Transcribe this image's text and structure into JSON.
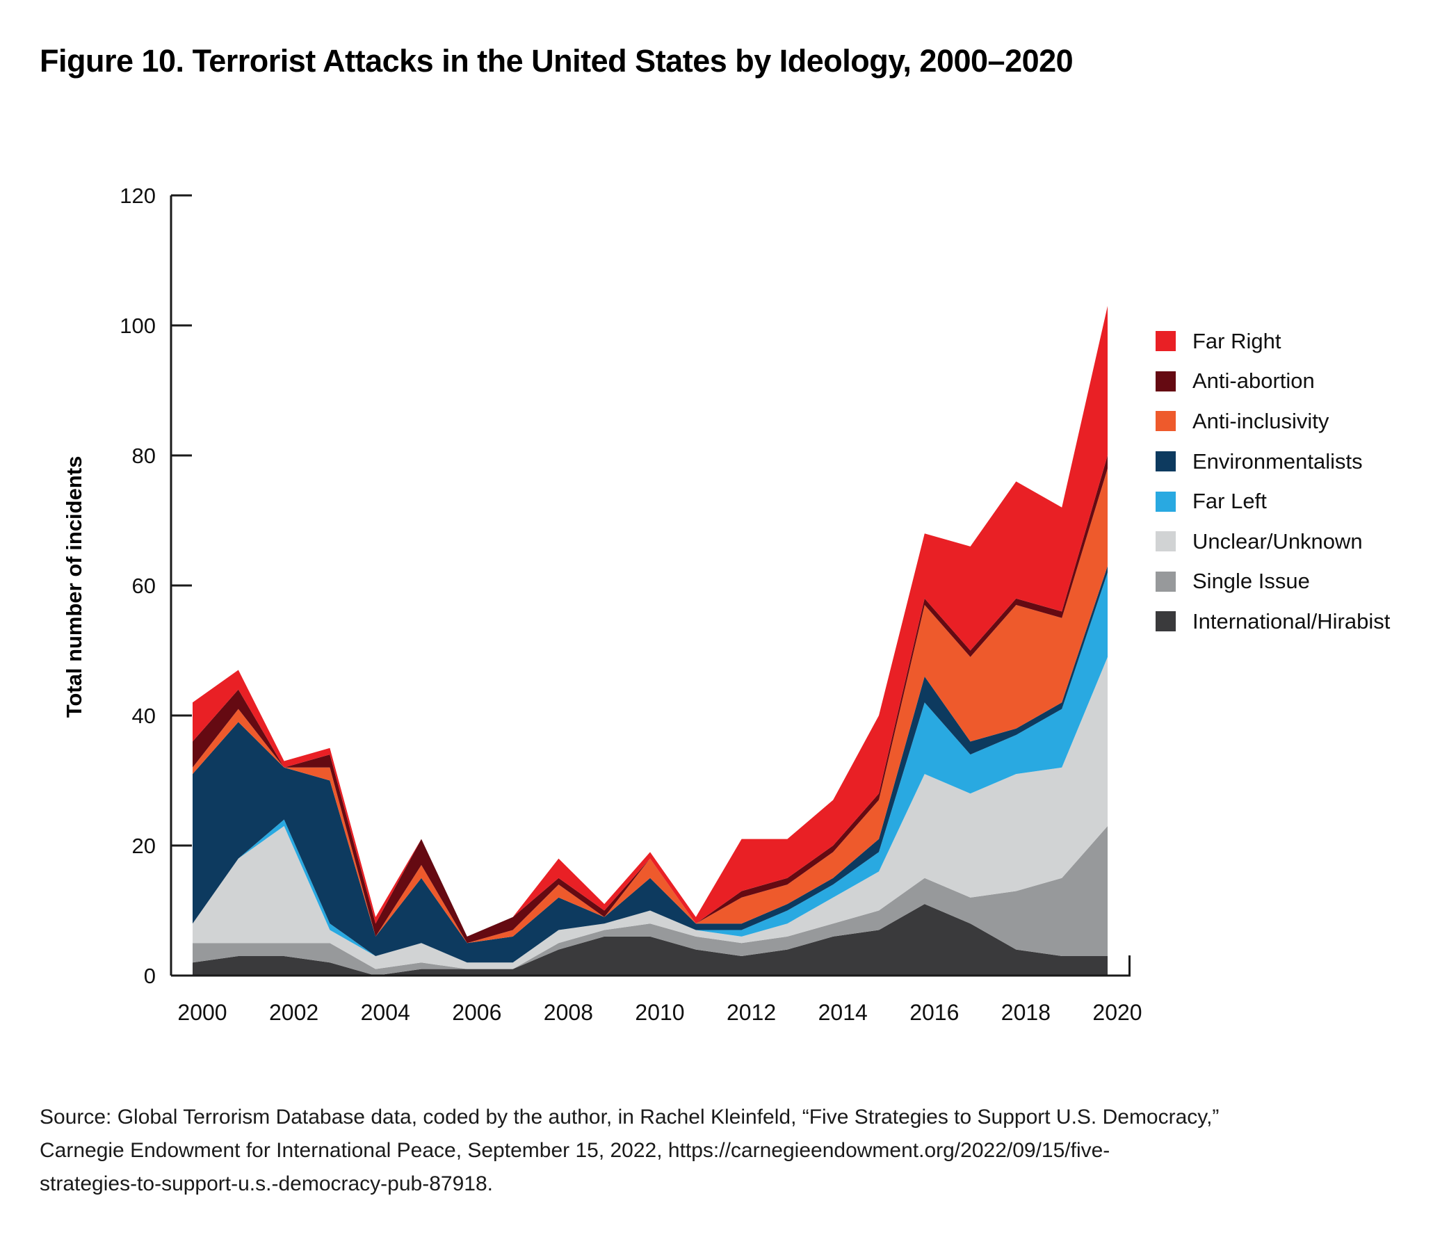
{
  "title": "Figure 10. Terrorist Attacks in the United States by Ideology, 2000–2020",
  "source": {
    "lines": [
      "Source: Global Terrorism Database data, coded by the author, in Rachel Kleinfeld, “Five Strategies to Support U.S. Democracy,”",
      "Carnegie Endowment for International Peace, September 15, 2022, https://carnegieendowment.org/2022/09/15/five-",
      "strategies-to-support-u.s.-democracy-pub-87918."
    ]
  },
  "chart_data": {
    "type": "area",
    "stacked": true,
    "title": "Figure 10. Terrorist Attacks in the United States by Ideology, 2000–2020",
    "xlabel": "",
    "ylabel": "Total number of incidents",
    "x": [
      2000,
      2001,
      2002,
      2003,
      2004,
      2005,
      2006,
      2007,
      2008,
      2009,
      2010,
      2011,
      2012,
      2013,
      2014,
      2015,
      2016,
      2017,
      2018,
      2019,
      2020
    ],
    "xticks": [
      2000,
      2002,
      2004,
      2006,
      2008,
      2010,
      2012,
      2014,
      2016,
      2018,
      2020
    ],
    "yticks": [
      0,
      20,
      40,
      60,
      80,
      100,
      120
    ],
    "ylim": [
      0,
      120
    ],
    "grid": false,
    "legend_position": "right",
    "series_bottom_to_top": [
      {
        "name": "International/Hirabist",
        "color": "#3A3A3C",
        "values": [
          2,
          3,
          3,
          2,
          0,
          1,
          1,
          1,
          4,
          6,
          6,
          4,
          3,
          4,
          6,
          7,
          11,
          8,
          4,
          3,
          3
        ]
      },
      {
        "name": "Single Issue",
        "color": "#97999B",
        "values": [
          3,
          2,
          2,
          3,
          1,
          1,
          0,
          0,
          1,
          1,
          2,
          2,
          2,
          2,
          2,
          3,
          4,
          4,
          9,
          12,
          20
        ]
      },
      {
        "name": "Unclear/Unknown",
        "color": "#D1D3D4",
        "values": [
          3,
          13,
          18,
          2,
          2,
          3,
          1,
          1,
          2,
          1,
          2,
          1,
          1,
          2,
          4,
          6,
          16,
          16,
          18,
          17,
          26
        ]
      },
      {
        "name": "Far Left",
        "color": "#29A9E1",
        "values": [
          0,
          0,
          1,
          1,
          0,
          0,
          0,
          0,
          0,
          0,
          0,
          0,
          1,
          2,
          2,
          3,
          11,
          6,
          6,
          9,
          13
        ]
      },
      {
        "name": "Environmentalists",
        "color": "#0D3A5F",
        "values": [
          23,
          21,
          8,
          22,
          3,
          10,
          3,
          4,
          5,
          1,
          5,
          1,
          1,
          1,
          1,
          2,
          4,
          2,
          1,
          1,
          1
        ]
      },
      {
        "name": "Anti-inclusivity",
        "color": "#EE5A2C",
        "values": [
          1,
          2,
          0,
          2,
          0,
          2,
          0,
          1,
          2,
          0,
          3,
          0,
          4,
          3,
          4,
          6,
          11,
          13,
          19,
          13,
          15
        ]
      },
      {
        "name": "Anti-abortion",
        "color": "#650A12",
        "values": [
          4,
          3,
          0,
          2,
          2,
          4,
          1,
          2,
          1,
          1,
          0,
          0,
          1,
          1,
          1,
          1,
          1,
          1,
          1,
          1,
          2
        ]
      },
      {
        "name": "Far Right",
        "color": "#E92025",
        "values": [
          6,
          3,
          1,
          1,
          1,
          0,
          0,
          0,
          3,
          1,
          1,
          1,
          8,
          6,
          7,
          12,
          10,
          16,
          18,
          16,
          23
        ]
      }
    ],
    "legend_top_to_bottom": [
      "Far Right",
      "Anti-abortion",
      "Anti-inclusivity",
      "Environmentalists",
      "Far Left",
      "Unclear/Unknown",
      "Single Issue",
      "International/Hirabist"
    ]
  }
}
